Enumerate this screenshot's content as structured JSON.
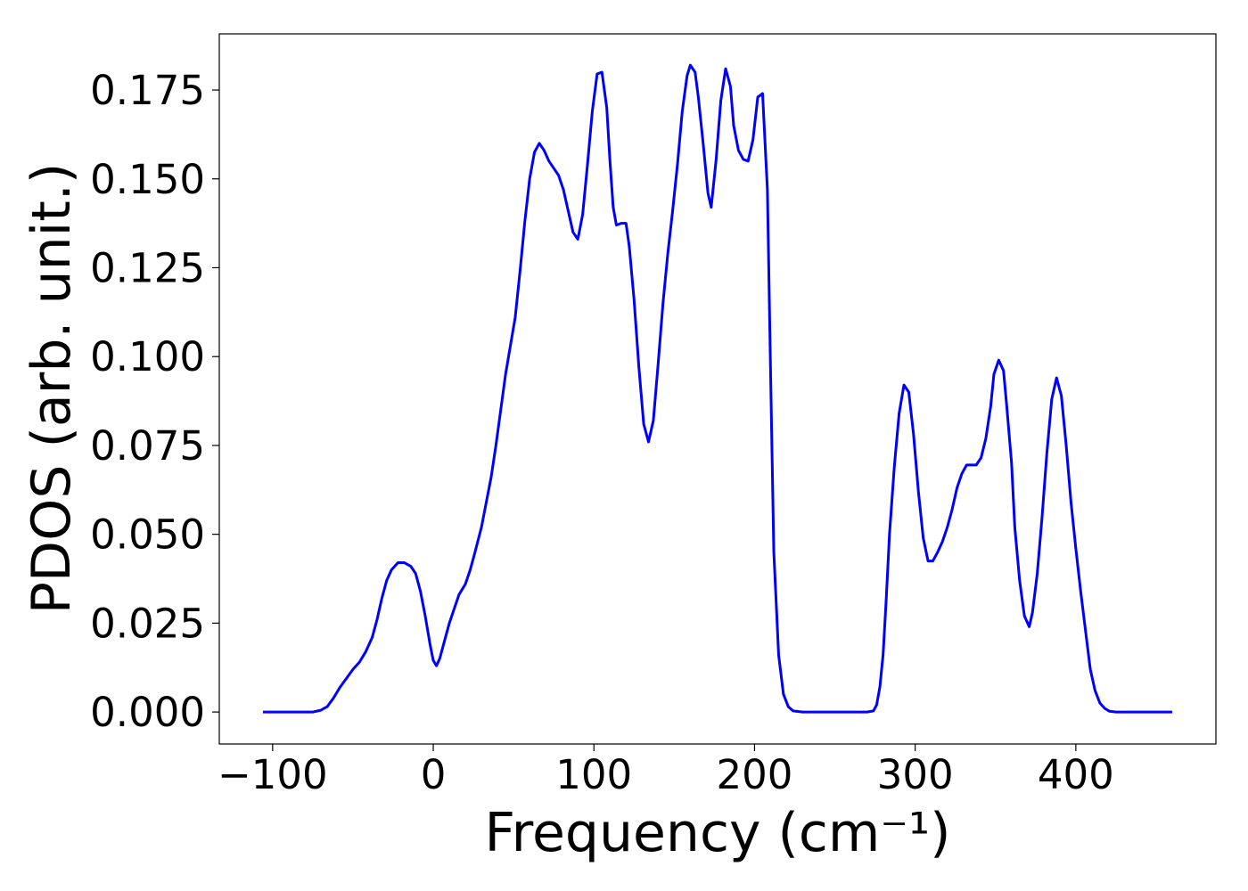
{
  "chart_data": {
    "type": "line",
    "xlabel": "Frequency (cm⁻¹)",
    "ylabel": "PDOS (arb. unit.)",
    "xlim": [
      -133.2,
      487.2
    ],
    "ylim": [
      -0.009,
      0.1908
    ],
    "xticks": [
      {
        "value": -100,
        "label": "−100"
      },
      0,
      100,
      200,
      300,
      400
    ],
    "yticks": [
      {
        "value": 0,
        "label": "0.000"
      },
      {
        "value": 0.025,
        "label": "0.025"
      },
      {
        "value": 0.05,
        "label": "0.050"
      },
      {
        "value": 0.075,
        "label": "0.075"
      },
      {
        "value": 0.1,
        "label": "0.100"
      },
      {
        "value": 0.125,
        "label": "0.125"
      },
      {
        "value": 0.15,
        "label": "0.150"
      },
      {
        "value": 0.175,
        "label": "0.175"
      }
    ],
    "grid": false,
    "series": [
      {
        "color": "#0000ff",
        "x": [
          -106,
          -90,
          -75,
          -70,
          -66,
          -62,
          -58,
          -54,
          -50,
          -46,
          -42,
          -38,
          -35,
          -32,
          -29,
          -26,
          -22,
          -18,
          -14,
          -11,
          -8,
          -5,
          -2,
          0,
          2,
          4,
          7,
          10,
          13,
          16,
          20,
          23,
          26,
          30,
          33,
          36,
          39,
          42,
          45,
          48,
          51,
          54,
          57,
          60,
          63,
          66,
          69,
          72,
          75,
          78,
          81,
          84,
          87,
          90,
          93,
          96,
          99,
          102,
          105,
          108,
          110,
          112,
          114,
          117,
          120,
          122,
          125,
          128,
          131,
          134,
          137,
          140,
          143,
          146,
          149,
          152,
          155,
          158,
          160,
          163,
          165,
          168,
          171,
          173,
          176,
          179,
          182,
          185,
          187,
          190,
          193,
          196,
          199,
          202,
          205,
          208,
          210,
          212,
          215,
          218,
          221,
          224,
          230,
          270,
          274,
          276,
          278,
          280,
          282,
          284,
          287,
          290,
          293,
          296,
          299,
          302,
          305,
          308,
          311,
          314,
          317,
          320,
          323,
          326,
          329,
          332,
          335,
          338,
          341,
          344,
          347,
          349,
          352,
          355,
          357,
          360,
          362,
          365,
          368,
          371,
          373,
          376,
          379,
          382,
          385,
          388,
          391,
          394,
          397,
          400,
          403,
          406,
          409,
          412,
          415,
          418,
          421,
          425,
          460
        ],
        "values": [
          0,
          0,
          0,
          0.0005,
          0.0015,
          0.004,
          0.007,
          0.0095,
          0.012,
          0.014,
          0.017,
          0.021,
          0.026,
          0.032,
          0.037,
          0.04,
          0.042,
          0.042,
          0.041,
          0.039,
          0.034,
          0.027,
          0.019,
          0.0145,
          0.013,
          0.015,
          0.02,
          0.025,
          0.029,
          0.033,
          0.036,
          0.04,
          0.045,
          0.052,
          0.059,
          0.066,
          0.075,
          0.085,
          0.095,
          0.103,
          0.111,
          0.124,
          0.138,
          0.15,
          0.1575,
          0.16,
          0.158,
          0.155,
          0.153,
          0.151,
          0.147,
          0.141,
          0.135,
          0.133,
          0.14,
          0.154,
          0.169,
          0.1795,
          0.18,
          0.17,
          0.155,
          0.142,
          0.137,
          0.1375,
          0.1375,
          0.131,
          0.116,
          0.097,
          0.081,
          0.076,
          0.082,
          0.098,
          0.115,
          0.129,
          0.141,
          0.154,
          0.169,
          0.179,
          0.182,
          0.18,
          0.173,
          0.16,
          0.146,
          0.142,
          0.155,
          0.172,
          0.181,
          0.176,
          0.165,
          0.158,
          0.1555,
          0.155,
          0.161,
          0.173,
          0.174,
          0.147,
          0.095,
          0.045,
          0.016,
          0.005,
          0.0015,
          0.0003,
          0,
          0,
          0.0003,
          0.002,
          0.007,
          0.016,
          0.032,
          0.05,
          0.069,
          0.084,
          0.092,
          0.09,
          0.078,
          0.062,
          0.049,
          0.0425,
          0.0425,
          0.045,
          0.048,
          0.052,
          0.057,
          0.063,
          0.067,
          0.0695,
          0.0695,
          0.0695,
          0.0715,
          0.077,
          0.086,
          0.095,
          0.099,
          0.096,
          0.086,
          0.07,
          0.052,
          0.037,
          0.027,
          0.024,
          0.028,
          0.039,
          0.055,
          0.073,
          0.088,
          0.094,
          0.089,
          0.075,
          0.059,
          0.046,
          0.034,
          0.023,
          0.012,
          0.006,
          0.0025,
          0.001,
          0.0002,
          0,
          0
        ]
      }
    ]
  }
}
